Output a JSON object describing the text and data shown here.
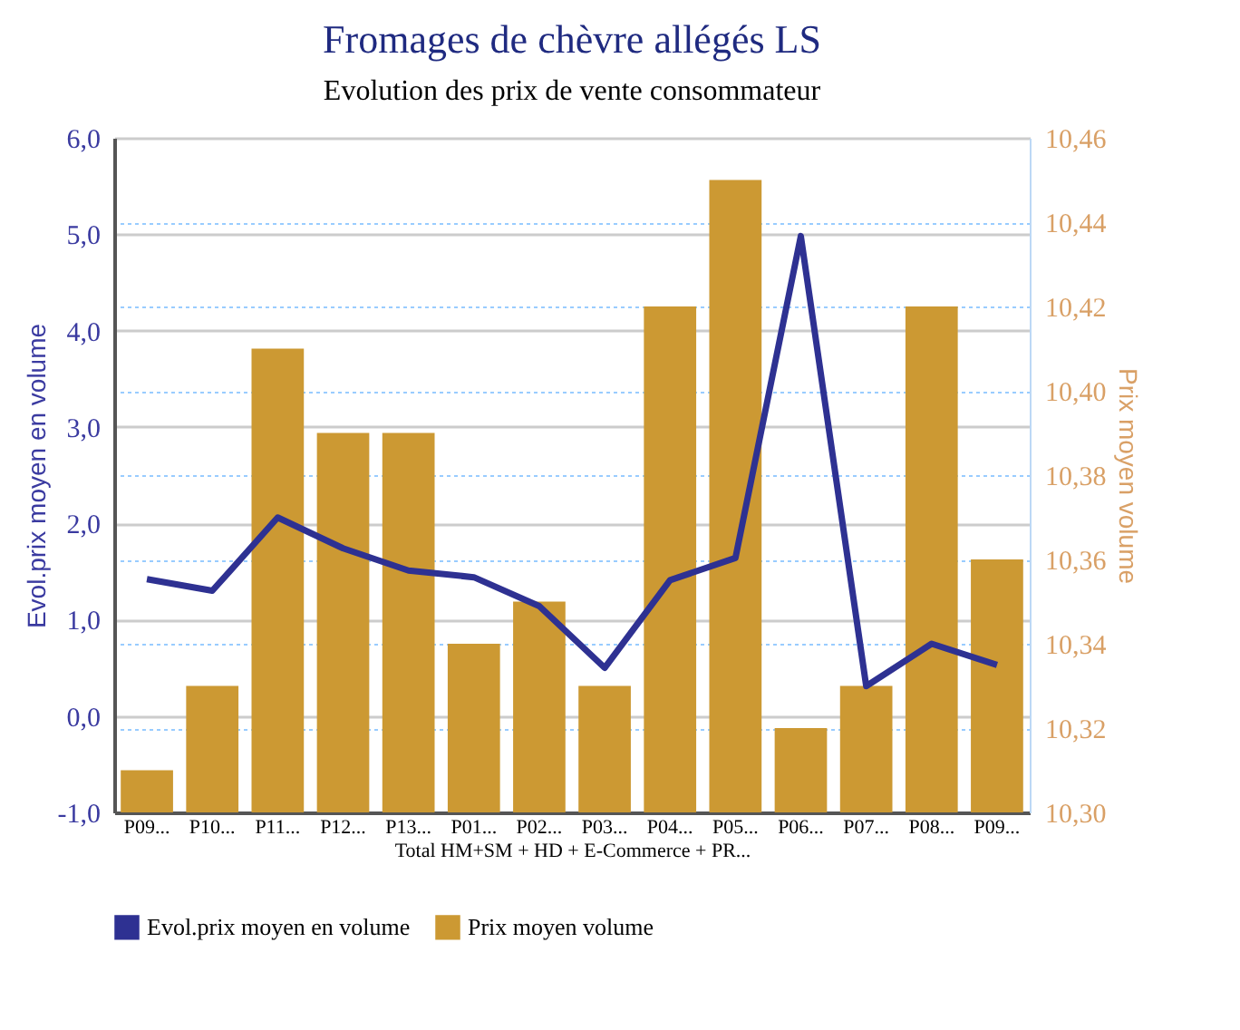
{
  "chart_data": {
    "type": "bar",
    "title": "Fromages de chèvre allégés LS",
    "subtitle": "Evolution des prix de vente consommateur",
    "ylabel": "Evol.prix moyen en volume",
    "y2label": "Prix moyen volume",
    "categories": [
      "P09...",
      "P10...",
      "P11...",
      "P12...",
      "P13...",
      "P01...",
      "P02...",
      "P03...",
      "P04...",
      "P05...",
      "P06...",
      "P07...",
      "P08...",
      "P09..."
    ],
    "series": [
      {
        "name": "Evol.prix moyen en volume",
        "type": "line",
        "color": "#2e3192",
        "values": [
          1.42,
          1.3,
          2.06,
          1.74,
          1.51,
          1.44,
          1.14,
          0.5,
          1.41,
          1.64,
          4.98,
          0.31,
          0.75,
          0.53
        ]
      },
      {
        "name": "Prix moyen volume",
        "axis": "y2",
        "color": "#cc9933",
        "values": [
          10.31,
          10.33,
          10.41,
          10.39,
          10.39,
          10.34,
          10.35,
          10.33,
          10.42,
          10.45,
          10.32,
          10.33,
          10.42,
          10.36
        ]
      }
    ],
    "ylim": [
      -1,
      6
    ],
    "yticks": [
      {
        "value": -1,
        "label": "-1,0"
      },
      {
        "value": 0,
        "label": "0,0"
      },
      {
        "value": 1,
        "label": "1,0"
      },
      {
        "value": 2,
        "label": "2,0"
      },
      {
        "value": 3,
        "label": "3,0"
      },
      {
        "value": 4,
        "label": "4,0"
      },
      {
        "value": 5,
        "label": "5,0"
      },
      {
        "value": 6,
        "label": "6,0"
      }
    ],
    "y2lim": [
      10.3,
      10.46
    ],
    "y2ticks": [
      {
        "value": 10.3,
        "label": "10,30"
      },
      {
        "value": 10.32,
        "label": "10,32"
      },
      {
        "value": 10.34,
        "label": "10,34"
      },
      {
        "value": 10.36,
        "label": "10,36"
      },
      {
        "value": 10.38,
        "label": "10,38"
      },
      {
        "value": 10.4,
        "label": "10,40"
      },
      {
        "value": 10.42,
        "label": "10,42"
      },
      {
        "value": 10.44,
        "label": "10,44"
      },
      {
        "value": 10.46,
        "label": "10,46"
      }
    ],
    "annotations": [
      "Total HM+SM + HD + E-Commerce + PR..."
    ],
    "grid": true,
    "legend": "bottom"
  }
}
